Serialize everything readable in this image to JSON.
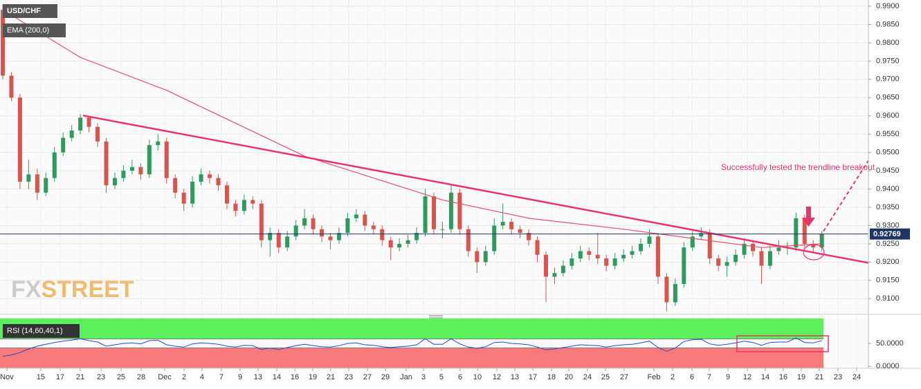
{
  "chart_data": [
    {
      "type": "candlestick",
      "title": "USD/CHF",
      "xlim": [
        -0.32,
        100.4
      ],
      "xticks": [
        {
          "value": 0.48,
          "label": "Nov"
        },
        {
          "value": 4.41,
          "label": "15"
        },
        {
          "value": 6.66,
          "label": "17"
        },
        {
          "value": 8.99,
          "label": "21"
        },
        {
          "value": 11.4,
          "label": "23"
        },
        {
          "value": 13.72,
          "label": "25"
        },
        {
          "value": 16.05,
          "label": "28"
        },
        {
          "value": 18.78,
          "label": "Dec"
        },
        {
          "value": 21.03,
          "label": "2"
        },
        {
          "value": 23.11,
          "label": "4"
        },
        {
          "value": 25.36,
          "label": "7"
        },
        {
          "value": 27.53,
          "label": "9"
        },
        {
          "value": 29.61,
          "label": "13"
        },
        {
          "value": 31.78,
          "label": "14"
        },
        {
          "value": 33.87,
          "label": "16"
        },
        {
          "value": 35.96,
          "label": "19"
        },
        {
          "value": 38.04,
          "label": "21"
        },
        {
          "value": 40.13,
          "label": "23"
        },
        {
          "value": 42.3,
          "label": "27"
        },
        {
          "value": 44.38,
          "label": "29"
        },
        {
          "value": 46.79,
          "label": "Jan"
        },
        {
          "value": 48.8,
          "label": "3"
        },
        {
          "value": 50.88,
          "label": "5"
        },
        {
          "value": 53.05,
          "label": "6"
        },
        {
          "value": 55.06,
          "label": "10"
        },
        {
          "value": 57.3,
          "label": "12"
        },
        {
          "value": 59.39,
          "label": "13"
        },
        {
          "value": 61.48,
          "label": "17"
        },
        {
          "value": 63.64,
          "label": "18"
        },
        {
          "value": 65.65,
          "label": "20"
        },
        {
          "value": 67.82,
          "label": "24"
        },
        {
          "value": 69.9,
          "label": "25"
        },
        {
          "value": 72.07,
          "label": "27"
        },
        {
          "value": 75.52,
          "label": "Feb"
        },
        {
          "value": 77.69,
          "label": "2"
        },
        {
          "value": 79.94,
          "label": "6"
        },
        {
          "value": 81.94,
          "label": "7"
        },
        {
          "value": 84.11,
          "label": "9"
        },
        {
          "value": 86.36,
          "label": "12"
        },
        {
          "value": 88.44,
          "label": "14"
        },
        {
          "value": 90.53,
          "label": "16"
        },
        {
          "value": 92.62,
          "label": "19"
        },
        {
          "value": 94.7,
          "label": "21"
        },
        {
          "value": 96.87,
          "label": "23"
        },
        {
          "value": 99.04,
          "label": "24"
        }
      ],
      "ylim": [
        0.9057,
        0.9917
      ],
      "yticks": [
        {
          "value": 0.91,
          "label": "0.9100"
        },
        {
          "value": 0.915,
          "label": "0.9150"
        },
        {
          "value": 0.92,
          "label": "0.9200"
        },
        {
          "value": 0.925,
          "label": "0.9250"
        },
        {
          "value": 0.93,
          "label": "0.9300"
        },
        {
          "value": 0.935,
          "label": "0.9350"
        },
        {
          "value": 0.94,
          "label": "0.9400"
        },
        {
          "value": 0.945,
          "label": "0.9450"
        },
        {
          "value": 0.95,
          "label": "0.9500"
        },
        {
          "value": 0.955,
          "label": "0.9550"
        },
        {
          "value": 0.96,
          "label": "0.9600"
        },
        {
          "value": 0.965,
          "label": "0.9650"
        },
        {
          "value": 0.97,
          "label": "0.9700"
        },
        {
          "value": 0.975,
          "label": "0.9750"
        },
        {
          "value": 0.98,
          "label": "0.9800"
        },
        {
          "value": 0.985,
          "label": "0.9850"
        },
        {
          "value": 0.99,
          "label": "0.9900"
        }
      ],
      "grid": true,
      "up_color": "#2f9a5e",
      "down_color": "#d9534f",
      "open": [
        0.989,
        0.971,
        0.965,
        0.942,
        0.944,
        0.939,
        0.943,
        0.95,
        0.954,
        0.956,
        0.9595,
        0.957,
        0.953,
        0.941,
        0.943,
        0.945,
        0.946,
        0.944,
        0.952,
        0.953,
        0.943,
        0.939,
        0.936,
        0.942,
        0.944,
        0.943,
        0.941,
        0.936,
        0.934,
        0.937,
        0.936,
        0.926,
        0.928,
        0.924,
        0.927,
        0.93,
        0.932,
        0.929,
        0.927,
        0.926,
        0.928,
        0.932,
        0.933,
        0.93,
        0.929,
        0.926,
        0.924,
        0.925,
        0.926,
        0.928,
        0.938,
        0.929,
        0.929,
        0.939,
        0.929,
        0.923,
        0.92,
        0.923,
        0.93,
        0.931,
        0.929,
        0.928,
        0.926,
        0.922,
        0.916,
        0.917,
        0.919,
        0.921,
        0.923,
        0.922,
        0.921,
        0.919,
        0.921,
        0.922,
        0.923,
        0.925,
        0.927,
        0.916,
        0.909,
        0.914,
        0.924,
        0.927,
        0.928,
        0.921,
        0.919,
        0.92,
        0.922,
        0.925,
        0.923,
        0.919,
        0.923,
        0.924,
        0.924,
        0.932,
        0.925,
        0.924
      ],
      "high": [
        0.9905,
        0.972,
        0.966,
        0.948,
        0.9455,
        0.9445,
        0.9515,
        0.9555,
        0.9575,
        0.9605,
        0.96,
        0.958,
        0.954,
        0.9445,
        0.9465,
        0.948,
        0.947,
        0.9535,
        0.955,
        0.954,
        0.944,
        0.94,
        0.9435,
        0.9455,
        0.945,
        0.944,
        0.942,
        0.937,
        0.9385,
        0.938,
        0.937,
        0.9295,
        0.929,
        0.9285,
        0.9315,
        0.9345,
        0.933,
        0.93,
        0.928,
        0.9295,
        0.9335,
        0.9345,
        0.934,
        0.931,
        0.93,
        0.927,
        0.9265,
        0.9275,
        0.9295,
        0.94,
        0.939,
        0.931,
        0.941,
        0.94,
        0.93,
        0.924,
        0.9245,
        0.932,
        0.936,
        0.932,
        0.93,
        0.929,
        0.927,
        0.923,
        0.9185,
        0.9205,
        0.9225,
        0.9245,
        0.924,
        0.928,
        0.922,
        0.9225,
        0.9235,
        0.9245,
        0.9265,
        0.929,
        0.928,
        0.917,
        0.9155,
        0.9255,
        0.9285,
        0.9295,
        0.929,
        0.922,
        0.9215,
        0.9235,
        0.9265,
        0.926,
        0.924,
        0.9245,
        0.926,
        0.9255,
        0.9335,
        0.933,
        0.926,
        0.9285
      ],
      "low": [
        0.97,
        0.964,
        0.94,
        0.94,
        0.937,
        0.938,
        0.942,
        0.949,
        0.953,
        0.955,
        0.9555,
        0.9515,
        0.939,
        0.94,
        0.942,
        0.944,
        0.9425,
        0.943,
        0.9505,
        0.9415,
        0.9375,
        0.934,
        0.935,
        0.941,
        0.9415,
        0.9395,
        0.9345,
        0.9325,
        0.933,
        0.9345,
        0.924,
        0.9215,
        0.9225,
        0.923,
        0.926,
        0.929,
        0.9275,
        0.9255,
        0.9235,
        0.925,
        0.927,
        0.931,
        0.9285,
        0.9275,
        0.9245,
        0.9205,
        0.923,
        0.924,
        0.925,
        0.927,
        0.9275,
        0.9265,
        0.928,
        0.9275,
        0.9215,
        0.917,
        0.919,
        0.922,
        0.929,
        0.9275,
        0.9265,
        0.9245,
        0.92,
        0.909,
        0.914,
        0.916,
        0.918,
        0.92,
        0.9205,
        0.9195,
        0.9175,
        0.918,
        0.92,
        0.921,
        0.922,
        0.924,
        0.914,
        0.9065,
        0.908,
        0.913,
        0.923,
        0.926,
        0.9195,
        0.9175,
        0.916,
        0.919,
        0.921,
        0.9215,
        0.914,
        0.918,
        0.922,
        0.922,
        0.923,
        0.9235,
        0.9225,
        0.923
      ],
      "close": [
        0.971,
        0.965,
        0.942,
        0.944,
        0.939,
        0.943,
        0.95,
        0.954,
        0.956,
        0.9595,
        0.957,
        0.953,
        0.941,
        0.943,
        0.945,
        0.946,
        0.944,
        0.952,
        0.953,
        0.943,
        0.939,
        0.936,
        0.942,
        0.944,
        0.943,
        0.941,
        0.936,
        0.934,
        0.937,
        0.936,
        0.926,
        0.928,
        0.924,
        0.927,
        0.93,
        0.932,
        0.929,
        0.927,
        0.926,
        0.928,
        0.932,
        0.933,
        0.93,
        0.929,
        0.926,
        0.924,
        0.925,
        0.926,
        0.928,
        0.938,
        0.929,
        0.929,
        0.939,
        0.929,
        0.923,
        0.92,
        0.923,
        0.93,
        0.931,
        0.929,
        0.928,
        0.926,
        0.922,
        0.916,
        0.917,
        0.919,
        0.921,
        0.923,
        0.922,
        0.921,
        0.919,
        0.921,
        0.922,
        0.923,
        0.925,
        0.927,
        0.916,
        0.909,
        0.914,
        0.924,
        0.927,
        0.928,
        0.921,
        0.919,
        0.92,
        0.922,
        0.925,
        0.923,
        0.919,
        0.923,
        0.924,
        0.924,
        0.932,
        0.925,
        0.924,
        0.9277
      ],
      "ema": {
        "name": "EMA (200,0)",
        "color": "#e0506a",
        "x": [
          0,
          9,
          19,
          35,
          51,
          61,
          72,
          80,
          88,
          95
        ],
        "values": [
          0.989,
          0.976,
          0.967,
          0.949,
          0.937,
          0.932,
          0.929,
          0.9265,
          0.924,
          0.925
        ]
      },
      "trendline": {
        "color": "#e8336d",
        "x": [
          9.31,
          100.4
        ],
        "values": [
          0.9601,
          0.9198
        ]
      },
      "projection": {
        "color": "#e8336d",
        "x": [
          94.8,
          100.4
        ],
        "values": [
          0.927,
          0.9478
        ]
      },
      "last_price": 0.92769,
      "annotation": "Successfully tested  the trendline breakout",
      "watermark": [
        "FX",
        "STREET"
      ]
    },
    {
      "type": "line",
      "title": "RSI (14,60,40,1)",
      "ylim": [
        -4,
        104
      ],
      "yticks": [
        {
          "value": 0,
          "label": "0.0000"
        },
        {
          "value": 50,
          "label": "50.0000"
        }
      ],
      "levels": [
        60,
        40
      ],
      "color": "#2a45d0",
      "values": [
        22,
        25,
        30,
        38,
        44,
        48,
        52,
        55,
        57,
        60,
        56,
        53,
        44,
        47,
        50,
        51,
        49,
        56,
        57,
        47,
        44,
        42,
        49,
        51,
        50,
        48,
        44,
        42,
        46,
        45,
        37,
        40,
        37,
        41,
        45,
        48,
        45,
        43,
        42,
        45,
        50,
        51,
        47,
        46,
        43,
        41,
        43,
        44,
        47,
        60,
        48,
        48,
        60,
        49,
        42,
        39,
        43,
        52,
        53,
        50,
        49,
        47,
        42,
        36,
        38,
        41,
        44,
        47,
        46,
        45,
        42,
        45,
        47,
        48,
        51,
        55,
        41,
        33,
        40,
        54,
        58,
        59,
        49,
        46,
        48,
        51,
        55,
        52,
        46,
        52,
        53,
        53,
        62,
        52,
        51,
        56
      ]
    }
  ]
}
